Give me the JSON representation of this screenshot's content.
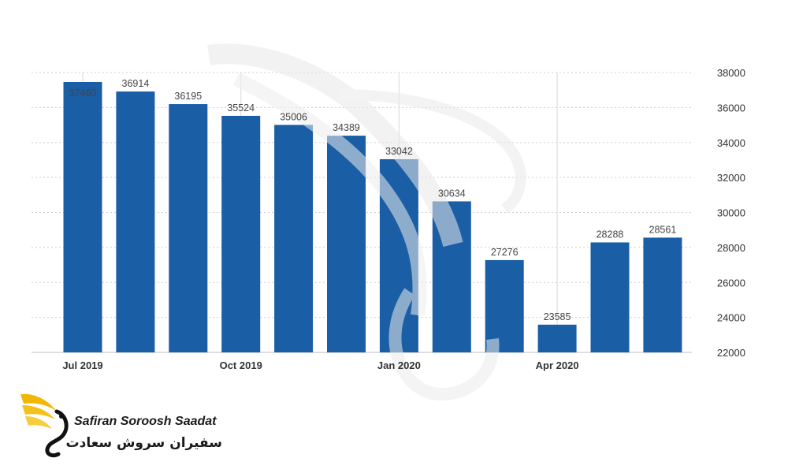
{
  "chart_data": {
    "type": "bar",
    "x_ticks": [
      "Jul 2019",
      "Oct 2019",
      "Jan 2020",
      "Apr 2020"
    ],
    "x_tick_positions": [
      0,
      3,
      6,
      9
    ],
    "values": [
      37460,
      36914,
      36195,
      35524,
      35006,
      34389,
      33042,
      30634,
      27276,
      23585,
      28288,
      28561
    ],
    "y_ticks": [
      22000,
      24000,
      26000,
      28000,
      30000,
      32000,
      34000,
      36000,
      38000
    ],
    "ylim": [
      22000,
      38000
    ],
    "y_axis_side": "right",
    "grid": true,
    "bar_color": "#1a5ea6"
  },
  "watermark": {
    "brand_en": "Safiran Soroosh Saadat",
    "brand_fa": "سفیران سروش سعادت"
  }
}
